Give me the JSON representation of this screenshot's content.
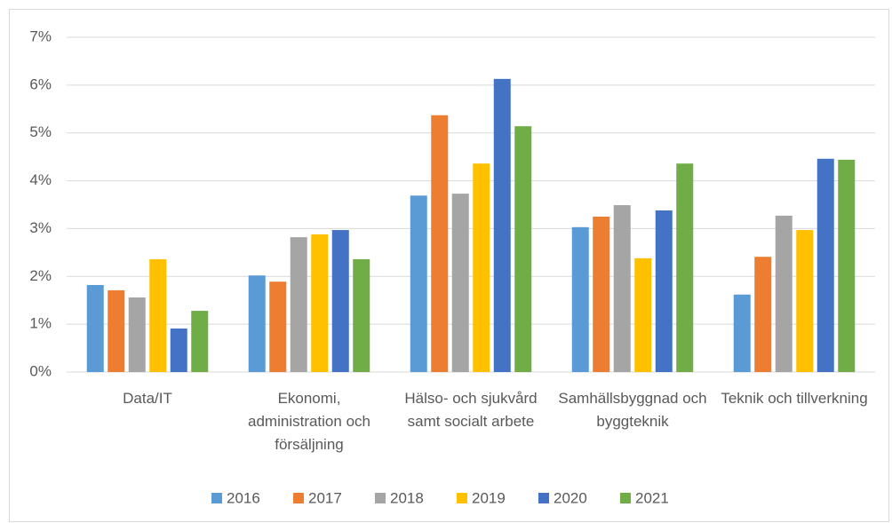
{
  "chart_data": {
    "type": "bar",
    "categories": [
      "Data/IT",
      "Ekonomi, administration och försäljning",
      "Hälso- och sjukvård samt socialt arbete",
      "Samhällsbyggnad och byggteknik",
      "Teknik och tillverkning"
    ],
    "series": [
      {
        "name": "2016",
        "color": "#5B9BD5",
        "values": [
          1.82,
          2.02,
          3.69,
          3.03,
          1.62
        ]
      },
      {
        "name": "2017",
        "color": "#ED7D31",
        "values": [
          1.71,
          1.89,
          5.37,
          3.25,
          2.41
        ]
      },
      {
        "name": "2018",
        "color": "#A5A5A5",
        "values": [
          1.56,
          2.82,
          3.73,
          3.49,
          3.27
        ]
      },
      {
        "name": "2019",
        "color": "#FFC000",
        "values": [
          2.36,
          2.88,
          4.36,
          2.38,
          2.97
        ]
      },
      {
        "name": "2020",
        "color": "#4472C4",
        "values": [
          0.91,
          2.97,
          6.13,
          3.38,
          4.46
        ]
      },
      {
        "name": "2021",
        "color": "#70AD47",
        "values": [
          1.28,
          2.36,
          5.14,
          4.36,
          4.44
        ]
      }
    ],
    "ylim": [
      0,
      7
    ],
    "yticks": [
      {
        "value": 0,
        "label": "0%"
      },
      {
        "value": 1,
        "label": "1%"
      },
      {
        "value": 2,
        "label": "2%"
      },
      {
        "value": 3,
        "label": "3%"
      },
      {
        "value": 4,
        "label": "4%"
      },
      {
        "value": 5,
        "label": "5%"
      },
      {
        "value": 6,
        "label": "6%"
      },
      {
        "value": 7,
        "label": "7%"
      }
    ],
    "grid": true,
    "legend": "bottom"
  }
}
